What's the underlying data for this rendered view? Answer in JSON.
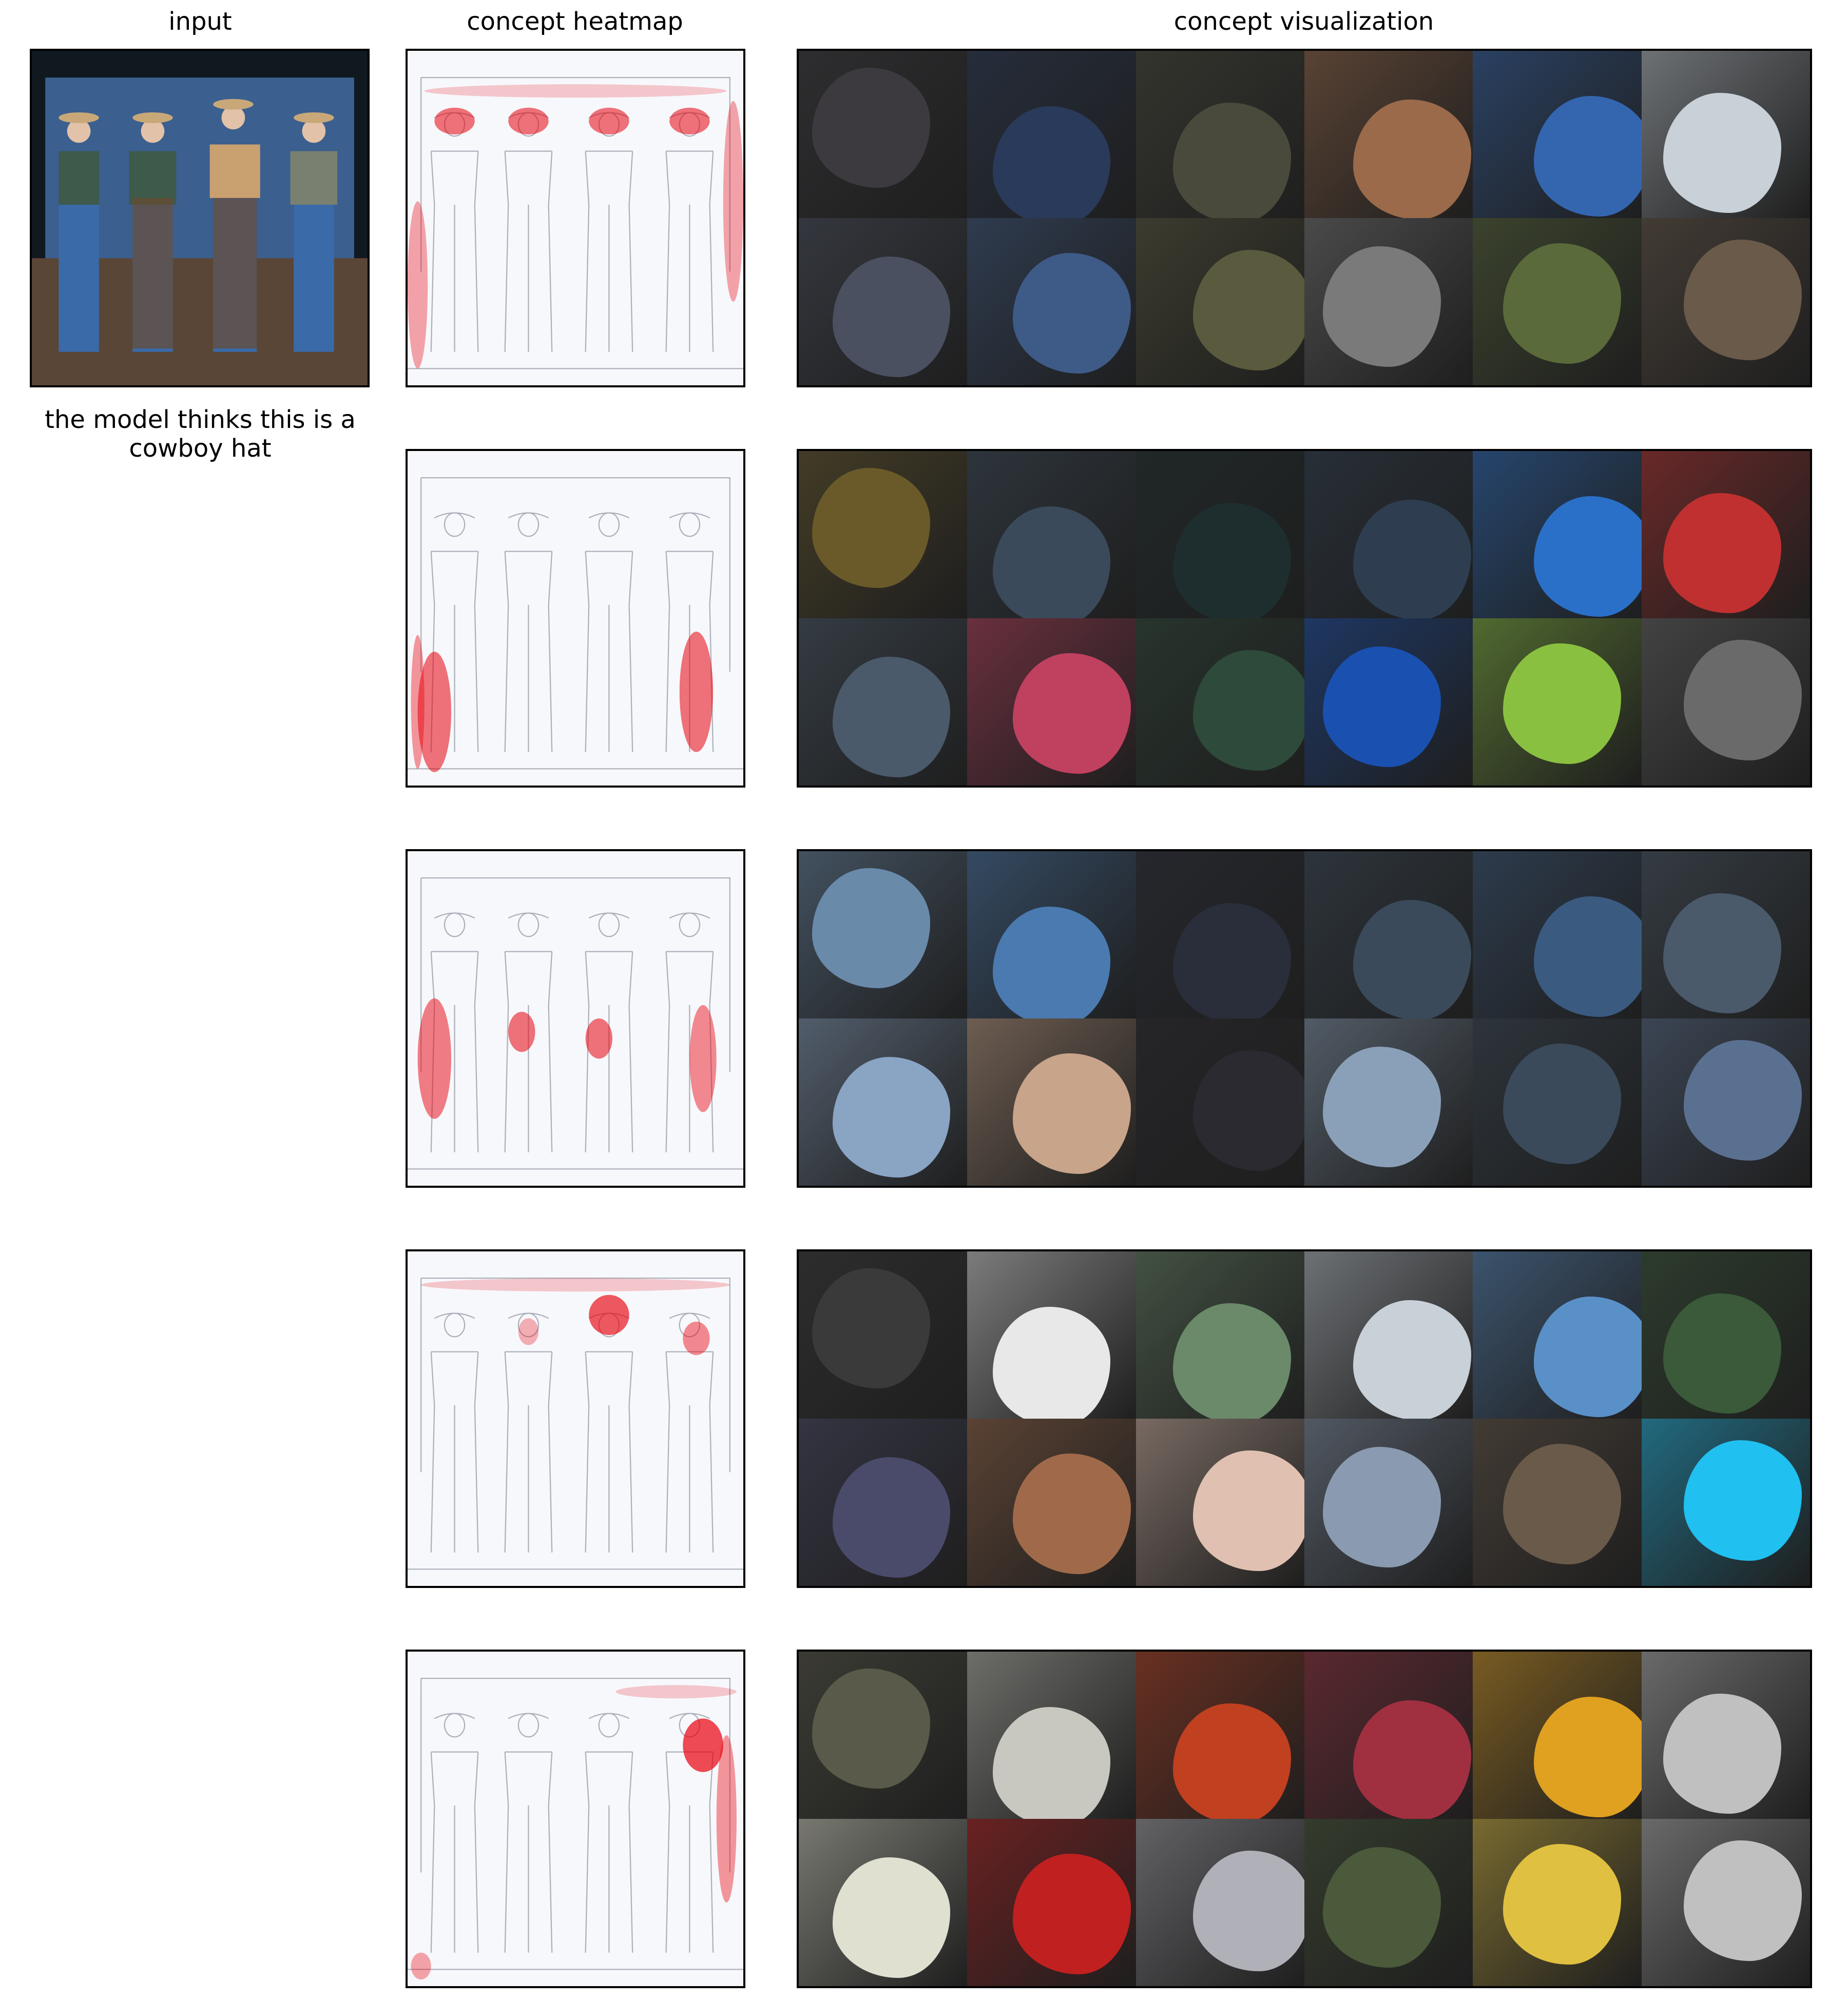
{
  "columns": {
    "input_title": "input",
    "heatmap_title": "concept heatmap",
    "visualization_title": "concept visualization"
  },
  "caption": "the model thinks this is a cowboy hat",
  "colors": {
    "heatmap_red": "#e8000b",
    "frame": "#000000",
    "background": "#ffffff"
  },
  "concepts": [
    {
      "id": 1,
      "heatmap_focus": "hats-and-faces",
      "tile_colors": [
        "#3c3a3f",
        "#2a3a5a",
        "#4a4a3c",
        "#9b6a4a",
        "#3466b0",
        "#c8d0d8",
        "#4a5060",
        "#3e5a86",
        "#5a5a3e",
        "#7a7a7a",
        "#5a6a3a",
        "#6a5a4a"
      ]
    },
    {
      "id": 2,
      "heatmap_focus": "legs-left-right",
      "tile_colors": [
        "#6a5a2a",
        "#3a4a5a",
        "#1e2e2e",
        "#2e3e50",
        "#2a70c8",
        "#c03030",
        "#4a5a6a",
        "#c04060",
        "#2e4a3a",
        "#1a50b0",
        "#8ac040",
        "#6a6a6a"
      ]
    },
    {
      "id": 3,
      "heatmap_focus": "jeans-pockets",
      "tile_colors": [
        "#6a8aaa",
        "#4a7ab0",
        "#2a2e3a",
        "#3a4a5a",
        "#3a5a80",
        "#4a5a6a",
        "#8aa4c4",
        "#c8a48a",
        "#2a2a30",
        "#8aa0b8",
        "#3a4a5a",
        "#5a7090"
      ]
    },
    {
      "id": 4,
      "heatmap_focus": "center-hat",
      "tile_colors": [
        "#3a3a3a",
        "#e8e8e8",
        "#6a8a6a",
        "#c8d0d8",
        "#5a90c8",
        "#3a5a3a",
        "#4a4a6a",
        "#a06a4a",
        "#e0c0b0",
        "#8a9ab0",
        "#6a5a4a",
        "#20c0f0"
      ]
    },
    {
      "id": 5,
      "heatmap_focus": "right-figure",
      "tile_colors": [
        "#5a5a4a",
        "#c8c8c0",
        "#c04020",
        "#a03040",
        "#e0a020",
        "#c0c0c0",
        "#e0e0d0",
        "#c02020",
        "#b0b0b8",
        "#4a5a3a",
        "#e0c040",
        "#c0c0c0"
      ]
    }
  ]
}
